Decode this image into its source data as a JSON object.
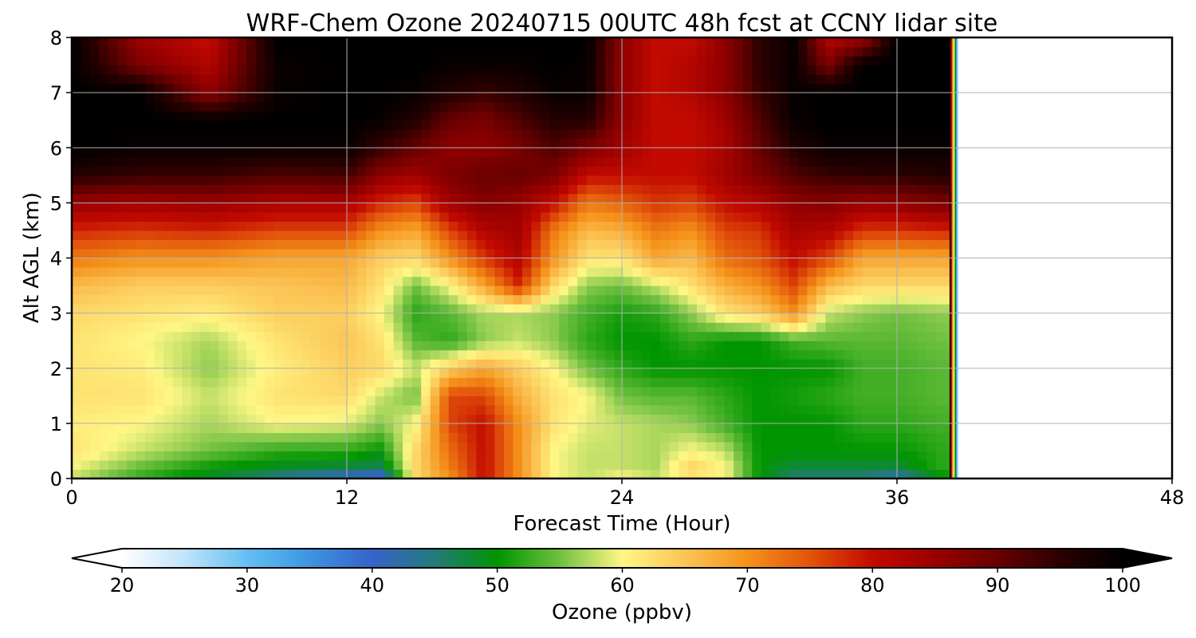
{
  "chart_data": {
    "type": "heatmap",
    "title": "WRF-Chem Ozone  20240715 00UTC 48h fcst at CCNY lidar site",
    "xlabel": "Forecast Time (Hour)",
    "ylabel": "Alt AGL (km)",
    "xlim": [
      0,
      48
    ],
    "ylim": [
      0,
      8
    ],
    "xticks": [
      0,
      12,
      24,
      36,
      48
    ],
    "yticks": [
      0,
      1,
      2,
      3,
      4,
      5,
      6,
      7,
      8
    ],
    "grid": true,
    "data_end_hour": 38.5,
    "colorbar": {
      "label": "Ozone  (ppbv)",
      "min": 20,
      "max": 100,
      "ticks": [
        20,
        30,
        40,
        50,
        60,
        70,
        80,
        90,
        100
      ],
      "extend": "both",
      "stops": [
        {
          "value": 20,
          "color": "#ffffff"
        },
        {
          "value": 25,
          "color": "#bfe4fa"
        },
        {
          "value": 30,
          "color": "#63bff2"
        },
        {
          "value": 35,
          "color": "#3d95e0"
        },
        {
          "value": 40,
          "color": "#3563c9"
        },
        {
          "value": 45,
          "color": "#237a7a"
        },
        {
          "value": 50,
          "color": "#009500"
        },
        {
          "value": 55,
          "color": "#70c040"
        },
        {
          "value": 60,
          "color": "#fff785"
        },
        {
          "value": 65,
          "color": "#fbc455"
        },
        {
          "value": 70,
          "color": "#f5921a"
        },
        {
          "value": 75,
          "color": "#e2540a"
        },
        {
          "value": 80,
          "color": "#c20a00"
        },
        {
          "value": 85,
          "color": "#990000"
        },
        {
          "value": 90,
          "color": "#680000"
        },
        {
          "value": 95,
          "color": "#2c0000"
        },
        {
          "value": 100,
          "color": "#000000"
        }
      ]
    },
    "x": [
      0,
      3,
      6,
      9,
      12,
      13.5,
      15,
      16.5,
      18,
      19.5,
      21,
      22.5,
      24,
      25.5,
      27,
      28.5,
      30,
      31.5,
      33,
      34.5,
      36,
      38
    ],
    "y": [
      0,
      0.25,
      0.5,
      1,
      1.5,
      2,
      2.5,
      3,
      3.5,
      4,
      4.5,
      5,
      5.5,
      6,
      6.5,
      7,
      7.5,
      8
    ],
    "values": [
      [
        58,
        52,
        48,
        44,
        40,
        38,
        63,
        70,
        80,
        70,
        60,
        58,
        60,
        58,
        62,
        60,
        50,
        45,
        45,
        45,
        42,
        50
      ],
      [
        60,
        55,
        51,
        49,
        48,
        47,
        63,
        72,
        80,
        70,
        60,
        58,
        58,
        57,
        63,
        60,
        50,
        48,
        48,
        48,
        48,
        52
      ],
      [
        62,
        58,
        55,
        52,
        52,
        50,
        63,
        73,
        80,
        70,
        60,
        58,
        58,
        57,
        60,
        58,
        50,
        50,
        50,
        50,
        50,
        52
      ],
      [
        61,
        60,
        57,
        60,
        59,
        56,
        60,
        76,
        80,
        70,
        62,
        59,
        58,
        57,
        56,
        53,
        50,
        50,
        50,
        52,
        52,
        53
      ],
      [
        62,
        62,
        58,
        62,
        63,
        58,
        55,
        76,
        76,
        67,
        62,
        60,
        55,
        54,
        54,
        52,
        50,
        51,
        52,
        53,
        53,
        54
      ],
      [
        62,
        61,
        56,
        61,
        64,
        63,
        58,
        64,
        68,
        64,
        60,
        55,
        52,
        50,
        50,
        50,
        50,
        50,
        50,
        53,
        53,
        54
      ],
      [
        62,
        60,
        57,
        62,
        65,
        62,
        54,
        52,
        56,
        58,
        56,
        52,
        50,
        50,
        52,
        50,
        50,
        53,
        54,
        54,
        54,
        55
      ],
      [
        63,
        62,
        61,
        64,
        64,
        60,
        52,
        54,
        57,
        57,
        56,
        53,
        51,
        52,
        56,
        62,
        64,
        70,
        58,
        56,
        55,
        56
      ],
      [
        66,
        64,
        64,
        65,
        66,
        62,
        55,
        60,
        68,
        78,
        63,
        56,
        55,
        58,
        62,
        67,
        70,
        76,
        66,
        63,
        63,
        63
      ],
      [
        72,
        70,
        70,
        68,
        68,
        64,
        63,
        70,
        77,
        82,
        70,
        62,
        62,
        68,
        66,
        73,
        75,
        80,
        76,
        68,
        68,
        68
      ],
      [
        78,
        77,
        78,
        76,
        76,
        70,
        68,
        76,
        82,
        84,
        72,
        66,
        67,
        72,
        70,
        76,
        77,
        83,
        82,
        77,
        77,
        78
      ],
      [
        85,
        84,
        85,
        83,
        83,
        78,
        76,
        84,
        87,
        85,
        80,
        72,
        74,
        77,
        76,
        80,
        82,
        86,
        87,
        85,
        86,
        88
      ],
      [
        96,
        94,
        94,
        92,
        93,
        86,
        84,
        88,
        90,
        90,
        88,
        80,
        80,
        80,
        80,
        84,
        88,
        92,
        94,
        95,
        95,
        96
      ],
      [
        100,
        99,
        99,
        99,
        99,
        94,
        90,
        86,
        86,
        88,
        92,
        88,
        84,
        80,
        80,
        83,
        90,
        96,
        99,
        99,
        99,
        99
      ],
      [
        100,
        100,
        100,
        100,
        100,
        99,
        96,
        90,
        88,
        92,
        96,
        96,
        86,
        80,
        80,
        84,
        92,
        99,
        100,
        100,
        100,
        100
      ],
      [
        100,
        100,
        86,
        99,
        100,
        100,
        99,
        96,
        94,
        96,
        99,
        99,
        86,
        80,
        82,
        86,
        94,
        99,
        100,
        100,
        100,
        100
      ],
      [
        100,
        88,
        82,
        99,
        100,
        100,
        100,
        99,
        99,
        99,
        100,
        99,
        86,
        80,
        82,
        86,
        95,
        99,
        88,
        100,
        100,
        100
      ],
      [
        100,
        84,
        80,
        100,
        100,
        100,
        100,
        100,
        100,
        100,
        100,
        100,
        86,
        80,
        80,
        86,
        95,
        99,
        82,
        84,
        100,
        100
      ]
    ]
  }
}
